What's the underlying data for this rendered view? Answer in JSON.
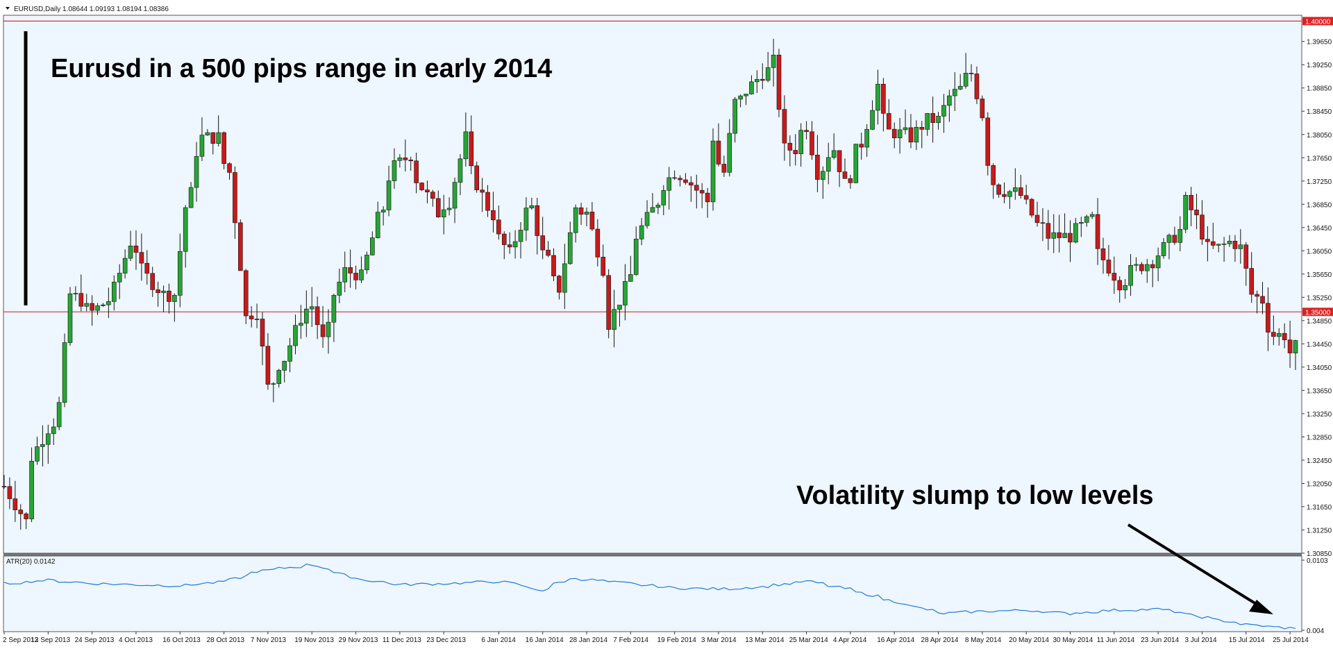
{
  "chart_title": "EURUSD,Daily  1.08644 1.09193 1.08194 1.08386",
  "indicator_label": "ATR(20) 0.0142",
  "annotations": {
    "range_note": "Eurusd in a 500 pips range in early 2014",
    "volatility_note": "Volatility slump to low levels"
  },
  "colors": {
    "background": "#eef6ff",
    "bull_candle": "#27a535",
    "bear_candle": "#c81a1a",
    "wick": "#111111",
    "level_line": "#e03030",
    "atr_line": "#1e7bd6",
    "label_bg": "#e02020"
  },
  "chart_data": [
    {
      "type": "candlestick",
      "ylim": [
        1.3085,
        1.401
      ],
      "x_tick_labels": [
        "2 Sep 2013",
        "12 Sep 2013",
        "24 Sep 2013",
        "4 Oct 2013",
        "16 Oct 2013",
        "28 Oct 2013",
        "7 Nov 2013",
        "19 Nov 2013",
        "29 Nov 2013",
        "11 Dec 2013",
        "23 Dec 2013",
        "6 Jan 2014",
        "16 Jan 2014",
        "28 Jan 2014",
        "7 Feb 2014",
        "19 Feb 2014",
        "3 Mar 2014",
        "13 Mar 2014",
        "25 Mar 2014",
        "4 Apr 2014",
        "16 Apr 2014",
        "28 Apr 2014",
        "8 May 2014",
        "20 May 2014",
        "30 May 2014",
        "11 Jun 2014",
        "23 Jun 2014",
        "3 Jul 2014",
        "15 Jul 2014",
        "25 Jul 2014"
      ],
      "y_tick_labels": [
        "1.39650",
        "1.39250",
        "1.38850",
        "1.38450",
        "1.38050",
        "1.37650",
        "1.37250",
        "1.36850",
        "1.36450",
        "1.36050",
        "1.35650",
        "1.35250",
        "1.34850",
        "1.34450",
        "1.34050",
        "1.33650",
        "1.33250",
        "1.32850",
        "1.32450",
        "1.32050",
        "1.31650",
        "1.31250",
        "1.30850"
      ],
      "levels": [
        {
          "value": 1.4,
          "label": "1.40000"
        },
        {
          "value": 1.35,
          "label": "1.35000"
        }
      ],
      "waypoints": [
        {
          "date": "2013-09-02",
          "close": 1.32
        },
        {
          "date": "2013-09-06",
          "close": 1.314
        },
        {
          "date": "2013-09-09",
          "close": 1.325
        },
        {
          "date": "2013-09-12",
          "close": 1.33
        },
        {
          "date": "2013-09-16",
          "close": 1.334
        },
        {
          "date": "2013-09-18",
          "close": 1.353
        },
        {
          "date": "2013-09-24",
          "close": 1.35
        },
        {
          "date": "2013-09-30",
          "close": 1.354
        },
        {
          "date": "2013-10-03",
          "close": 1.362
        },
        {
          "date": "2013-10-08",
          "close": 1.356
        },
        {
          "date": "2013-10-11",
          "close": 1.353
        },
        {
          "date": "2013-10-15",
          "close": 1.353
        },
        {
          "date": "2013-10-17",
          "close": 1.368
        },
        {
          "date": "2013-10-22",
          "close": 1.38
        },
        {
          "date": "2013-10-25",
          "close": 1.38
        },
        {
          "date": "2013-10-29",
          "close": 1.374
        },
        {
          "date": "2013-10-31",
          "close": 1.358
        },
        {
          "date": "2013-11-01",
          "close": 1.349
        },
        {
          "date": "2013-11-05",
          "close": 1.35
        },
        {
          "date": "2013-11-07",
          "close": 1.337
        },
        {
          "date": "2013-11-12",
          "close": 1.342
        },
        {
          "date": "2013-11-15",
          "close": 1.349
        },
        {
          "date": "2013-11-19",
          "close": 1.351
        },
        {
          "date": "2013-11-21",
          "close": 1.345
        },
        {
          "date": "2013-11-27",
          "close": 1.357
        },
        {
          "date": "2013-12-02",
          "close": 1.356
        },
        {
          "date": "2013-12-05",
          "close": 1.366
        },
        {
          "date": "2013-12-10",
          "close": 1.375
        },
        {
          "date": "2013-12-13",
          "close": 1.377
        },
        {
          "date": "2013-12-18",
          "close": 1.37
        },
        {
          "date": "2013-12-20",
          "close": 1.367
        },
        {
          "date": "2013-12-24",
          "close": 1.369
        },
        {
          "date": "2013-12-27",
          "close": 1.38
        },
        {
          "date": "2014-01-02",
          "close": 1.368
        },
        {
          "date": "2014-01-08",
          "close": 1.36
        },
        {
          "date": "2014-01-10",
          "close": 1.365
        },
        {
          "date": "2014-01-14",
          "close": 1.368
        },
        {
          "date": "2014-01-16",
          "close": 1.36
        },
        {
          "date": "2014-01-21",
          "close": 1.354
        },
        {
          "date": "2014-01-24",
          "close": 1.368
        },
        {
          "date": "2014-01-28",
          "close": 1.367
        },
        {
          "date": "2014-02-03",
          "close": 1.348
        },
        {
          "date": "2014-02-06",
          "close": 1.354
        },
        {
          "date": "2014-02-10",
          "close": 1.363
        },
        {
          "date": "2014-02-14",
          "close": 1.369
        },
        {
          "date": "2014-02-19",
          "close": 1.374
        },
        {
          "date": "2014-02-24",
          "close": 1.372
        },
        {
          "date": "2014-02-27",
          "close": 1.369
        },
        {
          "date": "2014-02-28",
          "close": 1.38
        },
        {
          "date": "2014-03-04",
          "close": 1.374
        },
        {
          "date": "2014-03-06",
          "close": 1.386
        },
        {
          "date": "2014-03-10",
          "close": 1.388
        },
        {
          "date": "2014-03-13",
          "close": 1.391
        },
        {
          "date": "2014-03-17",
          "close": 1.393
        },
        {
          "date": "2014-03-19",
          "close": 1.378
        },
        {
          "date": "2014-03-21",
          "close": 1.378
        },
        {
          "date": "2014-03-25",
          "close": 1.382
        },
        {
          "date": "2014-03-27",
          "close": 1.374
        },
        {
          "date": "2014-04-01",
          "close": 1.378
        },
        {
          "date": "2014-04-03",
          "close": 1.372
        },
        {
          "date": "2014-04-08",
          "close": 1.379
        },
        {
          "date": "2014-04-11",
          "close": 1.389
        },
        {
          "date": "2014-04-15",
          "close": 1.381
        },
        {
          "date": "2014-04-21",
          "close": 1.38
        },
        {
          "date": "2014-04-24",
          "close": 1.383
        },
        {
          "date": "2014-04-28",
          "close": 1.383
        },
        {
          "date": "2014-04-30",
          "close": 1.387
        },
        {
          "date": "2014-05-06",
          "close": 1.391
        },
        {
          "date": "2014-05-08",
          "close": 1.384
        },
        {
          "date": "2014-05-09",
          "close": 1.376
        },
        {
          "date": "2014-05-13",
          "close": 1.371
        },
        {
          "date": "2014-05-19",
          "close": 1.37
        },
        {
          "date": "2014-05-22",
          "close": 1.365
        },
        {
          "date": "2014-05-26",
          "close": 1.363
        },
        {
          "date": "2014-05-30",
          "close": 1.363
        },
        {
          "date": "2014-06-02",
          "close": 1.364
        },
        {
          "date": "2014-06-05",
          "close": 1.366
        },
        {
          "date": "2014-06-06",
          "close": 1.36
        },
        {
          "date": "2014-06-09",
          "close": 1.359
        },
        {
          "date": "2014-06-12",
          "close": 1.355
        },
        {
          "date": "2014-06-18",
          "close": 1.358
        },
        {
          "date": "2014-06-23",
          "close": 1.36
        },
        {
          "date": "2014-06-27",
          "close": 1.364
        },
        {
          "date": "2014-06-30",
          "close": 1.369
        },
        {
          "date": "2014-07-02",
          "close": 1.366
        },
        {
          "date": "2014-07-04",
          "close": 1.361
        },
        {
          "date": "2014-07-08",
          "close": 1.361
        },
        {
          "date": "2014-07-10",
          "close": 1.362
        },
        {
          "date": "2014-07-14",
          "close": 1.361
        },
        {
          "date": "2014-07-16",
          "close": 1.353
        },
        {
          "date": "2014-07-18",
          "close": 1.352
        },
        {
          "date": "2014-07-22",
          "close": 1.346
        },
        {
          "date": "2014-07-24",
          "close": 1.346
        },
        {
          "date": "2014-07-25",
          "close": 1.343
        },
        {
          "date": "2014-07-28",
          "close": 1.344
        }
      ]
    },
    {
      "type": "line",
      "name": "ATR(20)",
      "ylim": [
        0.004,
        0.0103
      ],
      "y_tick_labels": [
        "0.0103",
        "0.004"
      ],
      "waypoints": [
        {
          "date": "2013-09-02",
          "value": 0.0082
        },
        {
          "date": "2013-09-12",
          "value": 0.0085
        },
        {
          "date": "2013-09-24",
          "value": 0.0082
        },
        {
          "date": "2013-10-04",
          "value": 0.0081
        },
        {
          "date": "2013-10-16",
          "value": 0.008
        },
        {
          "date": "2013-10-28",
          "value": 0.0084
        },
        {
          "date": "2013-11-05",
          "value": 0.0093
        },
        {
          "date": "2013-11-19",
          "value": 0.0099
        },
        {
          "date": "2013-11-29",
          "value": 0.0087
        },
        {
          "date": "2013-12-11",
          "value": 0.0081
        },
        {
          "date": "2013-12-23",
          "value": 0.0082
        },
        {
          "date": "2014-01-06",
          "value": 0.0084
        },
        {
          "date": "2014-01-16",
          "value": 0.0076
        },
        {
          "date": "2014-01-24",
          "value": 0.0087
        },
        {
          "date": "2014-02-07",
          "value": 0.0082
        },
        {
          "date": "2014-02-19",
          "value": 0.0078
        },
        {
          "date": "2014-03-03",
          "value": 0.0077
        },
        {
          "date": "2014-03-13",
          "value": 0.0079
        },
        {
          "date": "2014-03-25",
          "value": 0.0084
        },
        {
          "date": "2014-04-04",
          "value": 0.0077
        },
        {
          "date": "2014-04-16",
          "value": 0.0066
        },
        {
          "date": "2014-04-28",
          "value": 0.0055
        },
        {
          "date": "2014-05-08",
          "value": 0.0057
        },
        {
          "date": "2014-05-20",
          "value": 0.0058
        },
        {
          "date": "2014-05-30",
          "value": 0.0055
        },
        {
          "date": "2014-06-11",
          "value": 0.0058
        },
        {
          "date": "2014-06-23",
          "value": 0.0059
        },
        {
          "date": "2014-07-03",
          "value": 0.0052
        },
        {
          "date": "2014-07-15",
          "value": 0.0045
        },
        {
          "date": "2014-07-25",
          "value": 0.0042
        },
        {
          "date": "2014-07-28",
          "value": 0.0041
        }
      ]
    }
  ]
}
